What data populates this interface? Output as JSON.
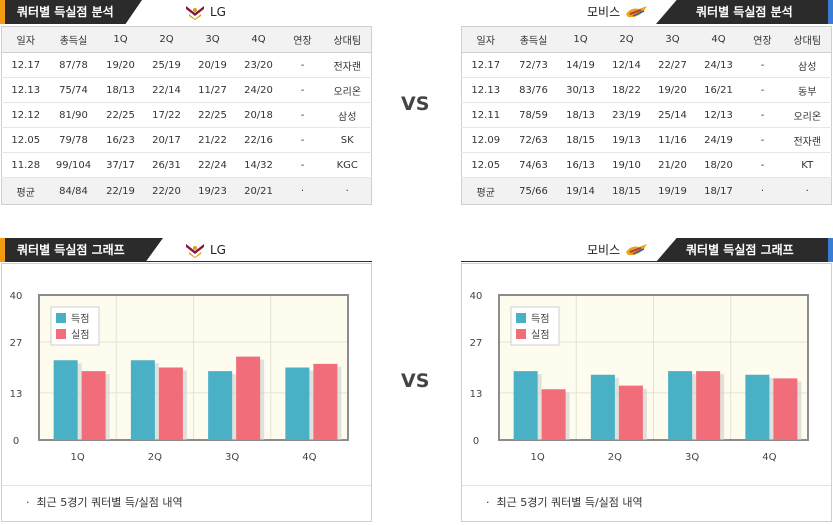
{
  "vs_label": "VS",
  "left": {
    "title": "쿼터별 득실점 분석",
    "graph_title": "쿼터별 득실점 그래프",
    "team": "LG",
    "accent": "#f39c12",
    "columns": [
      "일자",
      "총득실",
      "1Q",
      "2Q",
      "3Q",
      "4Q",
      "연장",
      "상대팀"
    ],
    "rows": [
      [
        "12.17",
        "87/78",
        "19/20",
        "25/19",
        "20/19",
        "23/20",
        "-",
        "전자랜"
      ],
      [
        "12.13",
        "75/74",
        "18/13",
        "22/14",
        "11/27",
        "24/20",
        "-",
        "오리온"
      ],
      [
        "12.12",
        "81/90",
        "22/25",
        "17/22",
        "22/25",
        "20/18",
        "-",
        "삼성"
      ],
      [
        "12.05",
        "79/78",
        "16/23",
        "20/17",
        "21/22",
        "22/16",
        "-",
        "SK"
      ],
      [
        "11.28",
        "99/104",
        "37/17",
        "26/31",
        "22/24",
        "14/32",
        "-",
        "KGC"
      ]
    ],
    "avg_row": [
      "평균",
      "84/84",
      "22/19",
      "22/20",
      "19/23",
      "20/21",
      "·",
      "·"
    ],
    "note": "최근 5경기 쿼터별 득/실점 내역"
  },
  "right": {
    "title": "쿼터별 득실점 분석",
    "graph_title": "쿼터별 득실점 그래프",
    "team": "모비스",
    "accent": "#3a7bd5",
    "columns": [
      "일자",
      "총득실",
      "1Q",
      "2Q",
      "3Q",
      "4Q",
      "연장",
      "상대팀"
    ],
    "rows": [
      [
        "12.17",
        "72/73",
        "14/19",
        "12/14",
        "22/27",
        "24/13",
        "-",
        "삼성"
      ],
      [
        "12.13",
        "83/76",
        "30/13",
        "18/22",
        "19/20",
        "16/21",
        "-",
        "동부"
      ],
      [
        "12.11",
        "78/59",
        "18/13",
        "23/19",
        "25/14",
        "12/13",
        "-",
        "오리온"
      ],
      [
        "12.09",
        "72/63",
        "18/15",
        "19/13",
        "11/16",
        "24/19",
        "-",
        "전자랜"
      ],
      [
        "12.05",
        "74/63",
        "16/13",
        "19/10",
        "21/20",
        "18/20",
        "-",
        "KT"
      ]
    ],
    "avg_row": [
      "평균",
      "75/66",
      "19/14",
      "18/15",
      "19/19",
      "18/17",
      "·",
      "·"
    ],
    "note": "최근 5경기 쿼터별 득/실점 내역"
  },
  "chart_data": [
    {
      "type": "bar",
      "team": "LG",
      "categories": [
        "1Q",
        "2Q",
        "3Q",
        "4Q"
      ],
      "series": [
        {
          "name": "득점",
          "color": "#4ab0c6",
          "values": [
            22,
            22,
            19,
            20
          ]
        },
        {
          "name": "실점",
          "color": "#f16d7a",
          "values": [
            19,
            20,
            23,
            21
          ]
        }
      ],
      "yticks": [
        0,
        13,
        27,
        40
      ],
      "ylim": [
        0,
        40
      ],
      "legend": "top-left"
    },
    {
      "type": "bar",
      "team": "모비스",
      "categories": [
        "1Q",
        "2Q",
        "3Q",
        "4Q"
      ],
      "series": [
        {
          "name": "득점",
          "color": "#4ab0c6",
          "values": [
            19,
            18,
            19,
            18
          ]
        },
        {
          "name": "실점",
          "color": "#f16d7a",
          "values": [
            14,
            15,
            19,
            17
          ]
        }
      ],
      "yticks": [
        0,
        13,
        27,
        40
      ],
      "ylim": [
        0,
        40
      ],
      "legend": "top-left"
    }
  ]
}
